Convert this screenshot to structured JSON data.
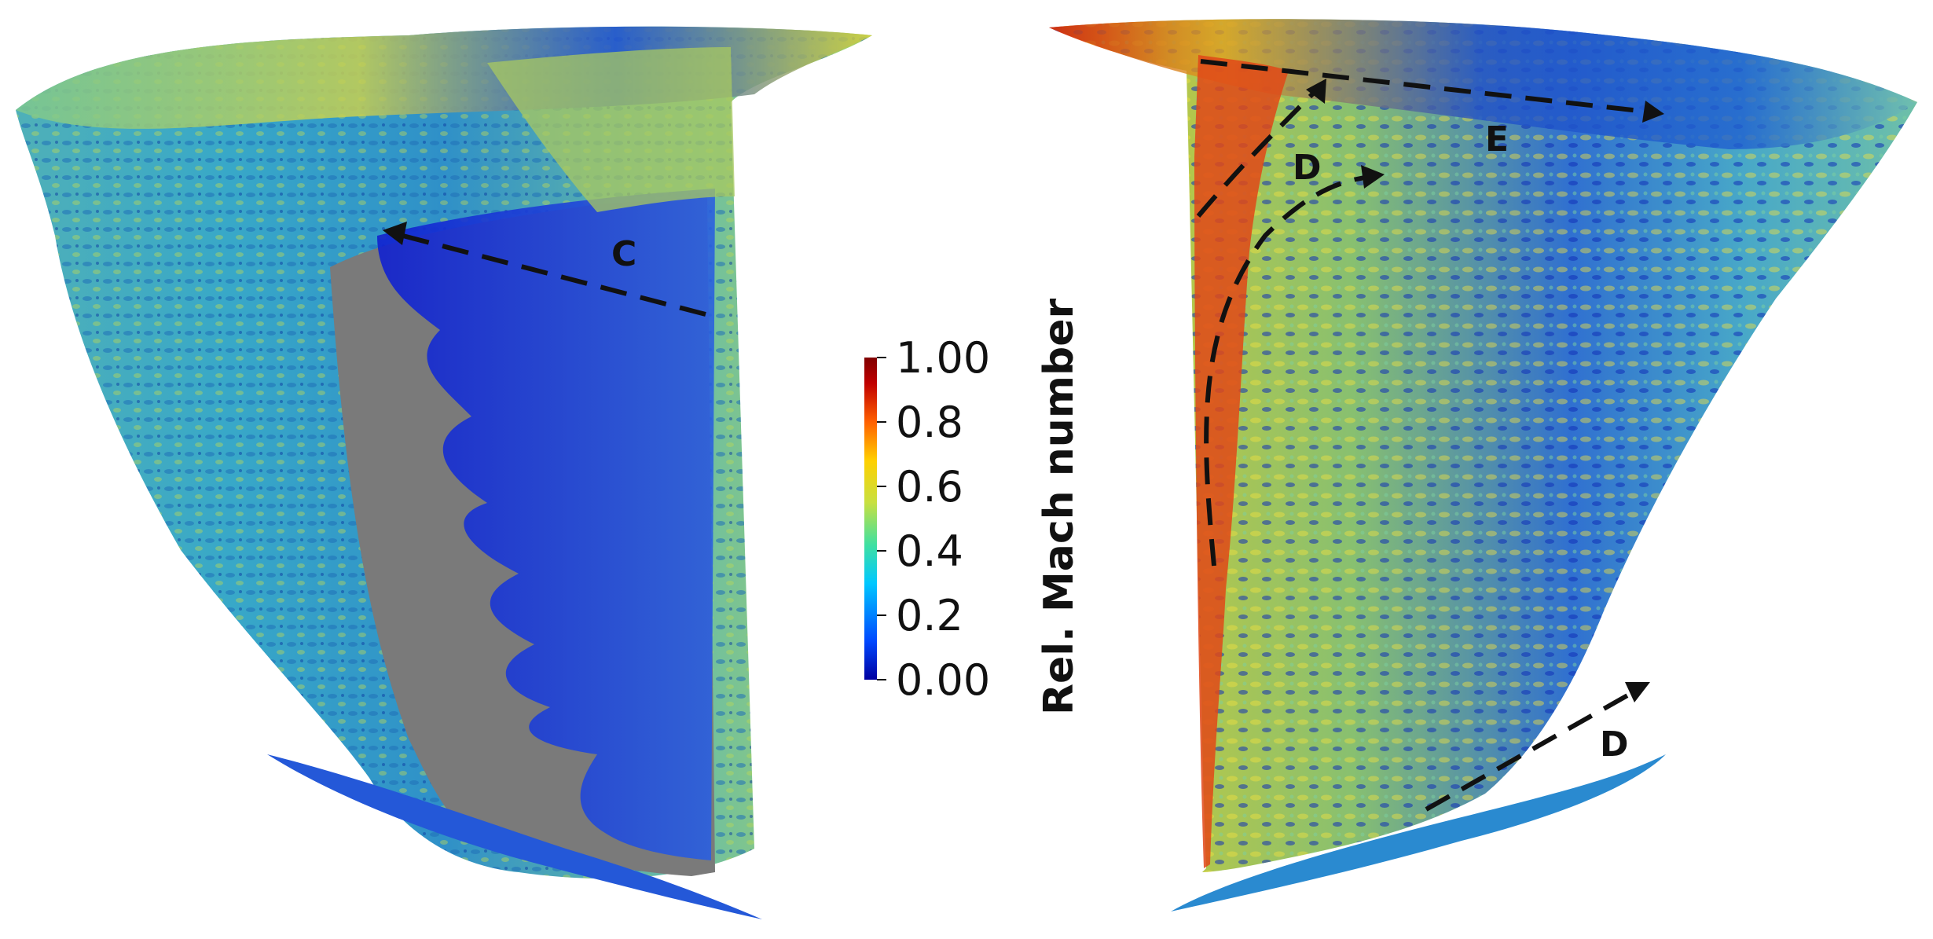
{
  "colorbar": {
    "title": "Rel. Mach number",
    "min": 0.0,
    "max": 1.0,
    "colormap": [
      "#0000a0",
      "#0048ff",
      "#00c8ff",
      "#40e0a0",
      "#c8e040",
      "#ffd000",
      "#ff6000",
      "#c00000",
      "#800000"
    ],
    "ticks": [
      {
        "value": 1.0,
        "label": "1.00"
      },
      {
        "value": 0.8,
        "label": "0.8"
      },
      {
        "value": 0.6,
        "label": "0.6"
      },
      {
        "value": 0.4,
        "label": "0.4"
      },
      {
        "value": 0.2,
        "label": "0.2"
      },
      {
        "value": 0.0,
        "label": "0.00"
      }
    ]
  },
  "annotations": {
    "c": "C",
    "d_top": "D",
    "e": "E",
    "d_bottom": "D"
  },
  "colors": {
    "blade_surface": "#7a7a7a",
    "background": "#ffffff"
  }
}
